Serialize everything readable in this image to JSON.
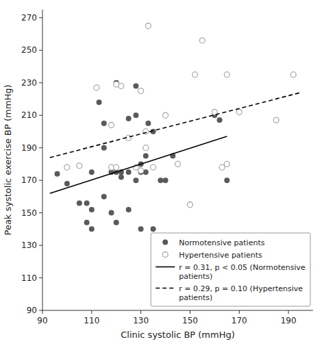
{
  "chart_data": {
    "type": "scatter",
    "x_label": "Clinic systolic BP (mmHg)",
    "y_label": "Peak systolic exercise BP (mmHg)",
    "xlim": [
      90,
      200
    ],
    "ylim": [
      90,
      275
    ],
    "xticks": [
      90,
      110,
      130,
      150,
      170,
      190
    ],
    "yticks": [
      90,
      110,
      130,
      150,
      170,
      190,
      210,
      230,
      250,
      270
    ],
    "grid": false,
    "legend": "lower right",
    "series": [
      {
        "name": "Normotensive patients",
        "type": "scatter",
        "marker": "circle",
        "color": "#5a5a5a",
        "x": [
          96,
          100,
          105,
          108,
          108,
          110,
          110,
          110,
          113,
          115,
          115,
          115,
          118,
          118,
          120,
          120,
          120,
          122,
          122,
          125,
          125,
          125,
          128,
          128,
          128,
          130,
          130,
          130,
          132,
          132,
          133,
          135,
          135,
          138,
          140,
          143,
          160,
          162,
          165
        ],
        "values": [
          174,
          168,
          156,
          156,
          144,
          152,
          175,
          140,
          218,
          205,
          190,
          160,
          175,
          150,
          230,
          175,
          144,
          172,
          175,
          152,
          208,
          175,
          228,
          210,
          170,
          175,
          180,
          140,
          185,
          175,
          205,
          200,
          140,
          170,
          170,
          185,
          210,
          207,
          170
        ]
      },
      {
        "name": "Hypertensive patients",
        "type": "scatter",
        "marker": "open-circle",
        "color": "#aaaaaa",
        "x": [
          100,
          105,
          112,
          118,
          118,
          120,
          120,
          122,
          125,
          128,
          130,
          130,
          132,
          132,
          133,
          135,
          140,
          145,
          150,
          152,
          155,
          160,
          163,
          165,
          165,
          170,
          185,
          192
        ],
        "values": [
          178,
          179,
          227,
          204,
          178,
          229,
          178,
          228,
          196,
          178,
          176,
          225,
          200,
          190,
          265,
          178,
          210,
          180,
          155,
          235,
          256,
          212,
          178,
          180,
          235,
          212,
          207,
          235
        ]
      },
      {
        "name": "r = 0.31, p < 0.05 (Normotensive\npatients)",
        "type": "line",
        "line_style": "solid",
        "color": "#000000",
        "x": [
          93,
          165
        ],
        "values": [
          162,
          197
        ]
      },
      {
        "name": "r = 0.29, p = 0.10 (Hypertensive\npatients)",
        "type": "line",
        "line_style": "dashed",
        "color": "#000000",
        "x": [
          93,
          195
        ],
        "values": [
          184,
          224
        ]
      }
    ]
  }
}
